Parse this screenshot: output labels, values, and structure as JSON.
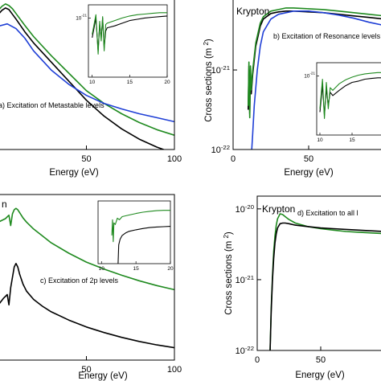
{
  "chart_data": [
    {
      "id": "a",
      "type": "line",
      "gas_label": "",
      "annotation": "a) Excitation of Metastable levels",
      "xlabel": "Energy (eV)",
      "ylabel": "",
      "xlim": [
        0,
        100
      ],
      "ylim_log": [
        -22,
        -20.1
      ],
      "x_ticks": [
        50,
        100
      ],
      "y_ticks": [],
      "series": [
        {
          "color": "#000000",
          "x": [
            -5,
            0,
            2,
            4,
            6,
            8,
            10,
            15,
            20,
            30,
            40,
            50,
            60,
            70,
            80,
            90,
            100
          ],
          "y": [
            -20.35,
            -20.3,
            -20.25,
            -20.22,
            -20.24,
            -20.3,
            -20.36,
            -20.52,
            -20.66,
            -20.9,
            -21.14,
            -21.38,
            -21.58,
            -21.74,
            -21.87,
            -21.97,
            -22.05
          ]
        },
        {
          "color": "#1f8a1f",
          "x": [
            -5,
            0,
            2,
            4,
            6,
            8,
            10,
            15,
            20,
            30,
            40,
            50,
            60,
            70,
            80,
            90,
            100
          ],
          "y": [
            -20.3,
            -20.25,
            -20.2,
            -20.17,
            -20.19,
            -20.23,
            -20.29,
            -20.44,
            -20.58,
            -20.82,
            -21.04,
            -21.26,
            -21.42,
            -21.55,
            -21.66,
            -21.75,
            -21.82
          ]
        },
        {
          "color": "#1f3fd6",
          "x": [
            -5,
            0,
            5,
            10,
            15,
            20,
            30,
            40,
            50,
            60,
            70,
            80,
            90,
            100
          ],
          "y": [
            -20.5,
            -20.45,
            -20.42,
            -20.48,
            -20.6,
            -20.76,
            -21.0,
            -21.18,
            -21.32,
            -21.42,
            -21.49,
            -21.55,
            -21.6,
            -21.65
          ]
        }
      ],
      "inset": {
        "xlim": [
          9.5,
          20
        ],
        "ylim_log": [
          -21.9,
          -20.8
        ],
        "x_ticks": [
          10,
          15,
          20
        ],
        "y_ticks": [
          {
            "value": -21,
            "label": "10-21"
          }
        ],
        "series": [
          {
            "color": "#000000",
            "x": [
              10,
              10.5,
              10.8,
              11,
              11.2,
              11.4,
              11.6,
              11.8,
              12,
              13,
              14,
              15,
              16,
              17,
              18,
              19,
              20
            ],
            "y": [
              -21.3,
              -21.0,
              -21.5,
              -21.1,
              -21.3,
              -21.0,
              -21.45,
              -21.2,
              -21.15,
              -21.12,
              -21.08,
              -21.04,
              -21.02,
              -21.0,
              -20.99,
              -20.98,
              -20.97
            ]
          },
          {
            "color": "#1f8a1f",
            "x": [
              10,
              10.5,
              10.8,
              11,
              11.2,
              11.4,
              11.6,
              11.8,
              12,
              13,
              14,
              15,
              16,
              17,
              18,
              19,
              20
            ],
            "y": [
              -21.25,
              -20.95,
              -21.55,
              -21.05,
              -21.35,
              -20.98,
              -21.5,
              -21.1,
              -21.08,
              -21.04,
              -21.0,
              -20.97,
              -20.95,
              -20.94,
              -20.93,
              -20.92,
              -20.92
            ]
          }
        ]
      }
    },
    {
      "id": "b",
      "type": "line",
      "gas_label": "Krypton",
      "annotation": "b) Excitation of Resonance levels",
      "xlabel": "Energy (eV)",
      "ylabel": "Cross sections (m2)",
      "xlim": [
        0,
        100
      ],
      "ylim_log": [
        -22,
        -20.1
      ],
      "x_ticks": [
        0,
        50
      ],
      "y_ticks": [
        {
          "value": -21,
          "label": "10-21"
        },
        {
          "value": -22,
          "label": "10-22"
        }
      ],
      "series": [
        {
          "color": "#000000",
          "x": [
            10,
            10.5,
            11,
            11.5,
            12,
            13,
            15,
            18,
            20,
            25,
            30,
            35,
            40,
            50,
            60,
            70,
            80,
            90,
            100
          ],
          "y": [
            -21.5,
            -20.95,
            -21.55,
            -21.0,
            -21.3,
            -21.05,
            -20.7,
            -20.45,
            -20.36,
            -20.29,
            -20.27,
            -20.26,
            -20.26,
            -20.27,
            -20.28,
            -20.3,
            -20.32,
            -20.34,
            -20.36
          ]
        },
        {
          "color": "#1f8a1f",
          "x": [
            10,
            10.5,
            11,
            11.5,
            12,
            13,
            15,
            18,
            20,
            25,
            30,
            35,
            40,
            50,
            60,
            70,
            80,
            90,
            100
          ],
          "y": [
            -21.45,
            -20.9,
            -21.6,
            -20.95,
            -21.25,
            -21.0,
            -20.66,
            -20.41,
            -20.33,
            -20.26,
            -20.24,
            -20.22,
            -20.22,
            -20.23,
            -20.24,
            -20.26,
            -20.28,
            -20.3,
            -20.32
          ]
        },
        {
          "color": "#1f3fd6",
          "x": [
            12,
            13,
            14,
            16,
            18,
            20,
            25,
            30,
            40,
            50,
            60,
            70,
            80,
            90,
            100
          ],
          "y": [
            -22.1,
            -21.8,
            -21.45,
            -21.0,
            -20.7,
            -20.52,
            -20.36,
            -20.3,
            -20.26,
            -20.26,
            -20.28,
            -20.31,
            -20.35,
            -20.4,
            -20.44
          ]
        }
      ],
      "inset": {
        "xlim": [
          9.5,
          20
        ],
        "ylim_log": [
          -21.9,
          -20.8
        ],
        "x_ticks": [
          10,
          15,
          20
        ],
        "y_ticks": [
          {
            "value": -21,
            "label": "10-21"
          }
        ],
        "series": [
          {
            "color": "#000000",
            "x": [
              10,
              10.4,
              10.7,
              11,
              11.3,
              11.6,
              12,
              13,
              14,
              15,
              16,
              17,
              18,
              19,
              20
            ],
            "y": [
              -21.55,
              -21.15,
              -21.6,
              -21.2,
              -21.45,
              -21.25,
              -21.3,
              -21.22,
              -21.15,
              -21.1,
              -21.08,
              -21.05,
              -21.04,
              -21.03,
              -21.03
            ]
          },
          {
            "color": "#1f8a1f",
            "x": [
              10,
              10.4,
              10.7,
              11,
              11.3,
              11.6,
              12,
              13,
              14,
              15,
              16,
              17,
              18,
              19,
              20
            ],
            "y": [
              -21.5,
              -21.05,
              -21.65,
              -21.1,
              -21.5,
              -21.18,
              -21.22,
              -21.12,
              -21.06,
              -21.02,
              -20.99,
              -20.97,
              -20.96,
              -20.95,
              -20.95
            ]
          }
        ]
      }
    },
    {
      "id": "c",
      "type": "line",
      "gas_label": "n",
      "annotation": "c) Excitation of 2p levels",
      "xlabel": "Energy (eV)",
      "ylabel": "",
      "xlim": [
        0,
        100
      ],
      "ylim_log": [
        -23,
        -20.6
      ],
      "x_ticks": [
        50,
        100
      ],
      "y_ticks": [],
      "series": [
        {
          "color": "#1f8a1f",
          "x": [
            -5,
            0,
            4,
            6,
            7,
            8,
            9,
            10,
            11,
            12,
            14,
            16,
            20,
            25,
            30,
            40,
            50,
            60,
            70,
            80,
            90,
            100
          ],
          "y": [
            -21.1,
            -21.0,
            -20.95,
            -20.9,
            -21.05,
            -20.88,
            -20.82,
            -20.8,
            -20.82,
            -20.86,
            -20.94,
            -21.0,
            -21.1,
            -21.2,
            -21.3,
            -21.45,
            -21.58,
            -21.68,
            -21.77,
            -21.85,
            -21.92,
            -21.98
          ]
        },
        {
          "color": "#000000",
          "x": [
            -5,
            0,
            3,
            5,
            6,
            7,
            8,
            9,
            10,
            11,
            12,
            14,
            16,
            20,
            25,
            30,
            40,
            50,
            60,
            70,
            80,
            90,
            100
          ],
          "y": [
            -22.3,
            -22.2,
            -22.1,
            -22.05,
            -22.2,
            -21.95,
            -21.8,
            -21.65,
            -21.6,
            -21.65,
            -21.75,
            -21.9,
            -22.0,
            -22.12,
            -22.22,
            -22.3,
            -22.42,
            -22.52,
            -22.6,
            -22.67,
            -22.73,
            -22.78,
            -22.82
          ]
        }
      ],
      "inset": {
        "xlim": [
          9.5,
          20
        ],
        "ylim_log": [
          -22.6,
          -20.6
        ],
        "x_ticks": [
          10,
          15,
          20
        ],
        "y_ticks": [],
        "series": [
          {
            "color": "#1f8a1f",
            "x": [
              11.5,
              11.6,
              11.7,
              11.8,
              12,
              12.3,
              12.6,
              13,
              14,
              15,
              16,
              17,
              18,
              19,
              20
            ],
            "y": [
              -21.7,
              -21.2,
              -21.9,
              -21.3,
              -21.35,
              -21.15,
              -21.2,
              -21.1,
              -21.05,
              -21.0,
              -20.96,
              -20.93,
              -20.91,
              -20.9,
              -20.9
            ]
          },
          {
            "color": "#000000",
            "x": [
              12.4,
              12.5,
              12.7,
              13,
              13.5,
              14,
              15,
              16,
              17,
              18,
              19,
              20
            ],
            "y": [
              -22.6,
              -22.0,
              -21.82,
              -21.7,
              -21.62,
              -21.57,
              -21.52,
              -21.48,
              -21.45,
              -21.43,
              -21.42,
              -21.41
            ]
          }
        ]
      }
    },
    {
      "id": "d",
      "type": "line",
      "gas_label": "Krypton",
      "annotation": "d) Excitation to all l",
      "xlabel": "Energy (eV)",
      "ylabel": "Cross sections (m2)",
      "xlim": [
        0,
        100
      ],
      "ylim_log": [
        -22,
        -19.82
      ],
      "x_ticks": [
        0,
        50
      ],
      "y_ticks": [
        {
          "value": -20,
          "label": "10-20"
        },
        {
          "value": -21,
          "label": "10-21"
        },
        {
          "value": -22,
          "label": "10-22"
        }
      ],
      "series": [
        {
          "color": "#1f8a1f",
          "x": [
            10,
            11,
            12,
            13,
            14,
            15,
            16,
            18,
            20,
            22,
            25,
            30,
            40,
            50,
            60,
            70,
            80,
            90,
            100
          ],
          "y": [
            -22.1,
            -21.4,
            -20.95,
            -20.6,
            -20.38,
            -20.23,
            -20.14,
            -20.07,
            -20.08,
            -20.11,
            -20.15,
            -20.2,
            -20.25,
            -20.28,
            -20.3,
            -20.32,
            -20.33,
            -20.34,
            -20.35
          ]
        },
        {
          "color": "#000000",
          "x": [
            10,
            11,
            12,
            13,
            14,
            15,
            16,
            18,
            20,
            22,
            25,
            30,
            40,
            50,
            60,
            70,
            80,
            90,
            100
          ],
          "y": [
            -22.1,
            -21.45,
            -21.0,
            -20.7,
            -20.48,
            -20.35,
            -20.27,
            -20.21,
            -20.2,
            -20.2,
            -20.21,
            -20.23,
            -20.25,
            -20.27,
            -20.28,
            -20.29,
            -20.3,
            -20.31,
            -20.32
          ]
        }
      ],
      "inset": null
    }
  ]
}
